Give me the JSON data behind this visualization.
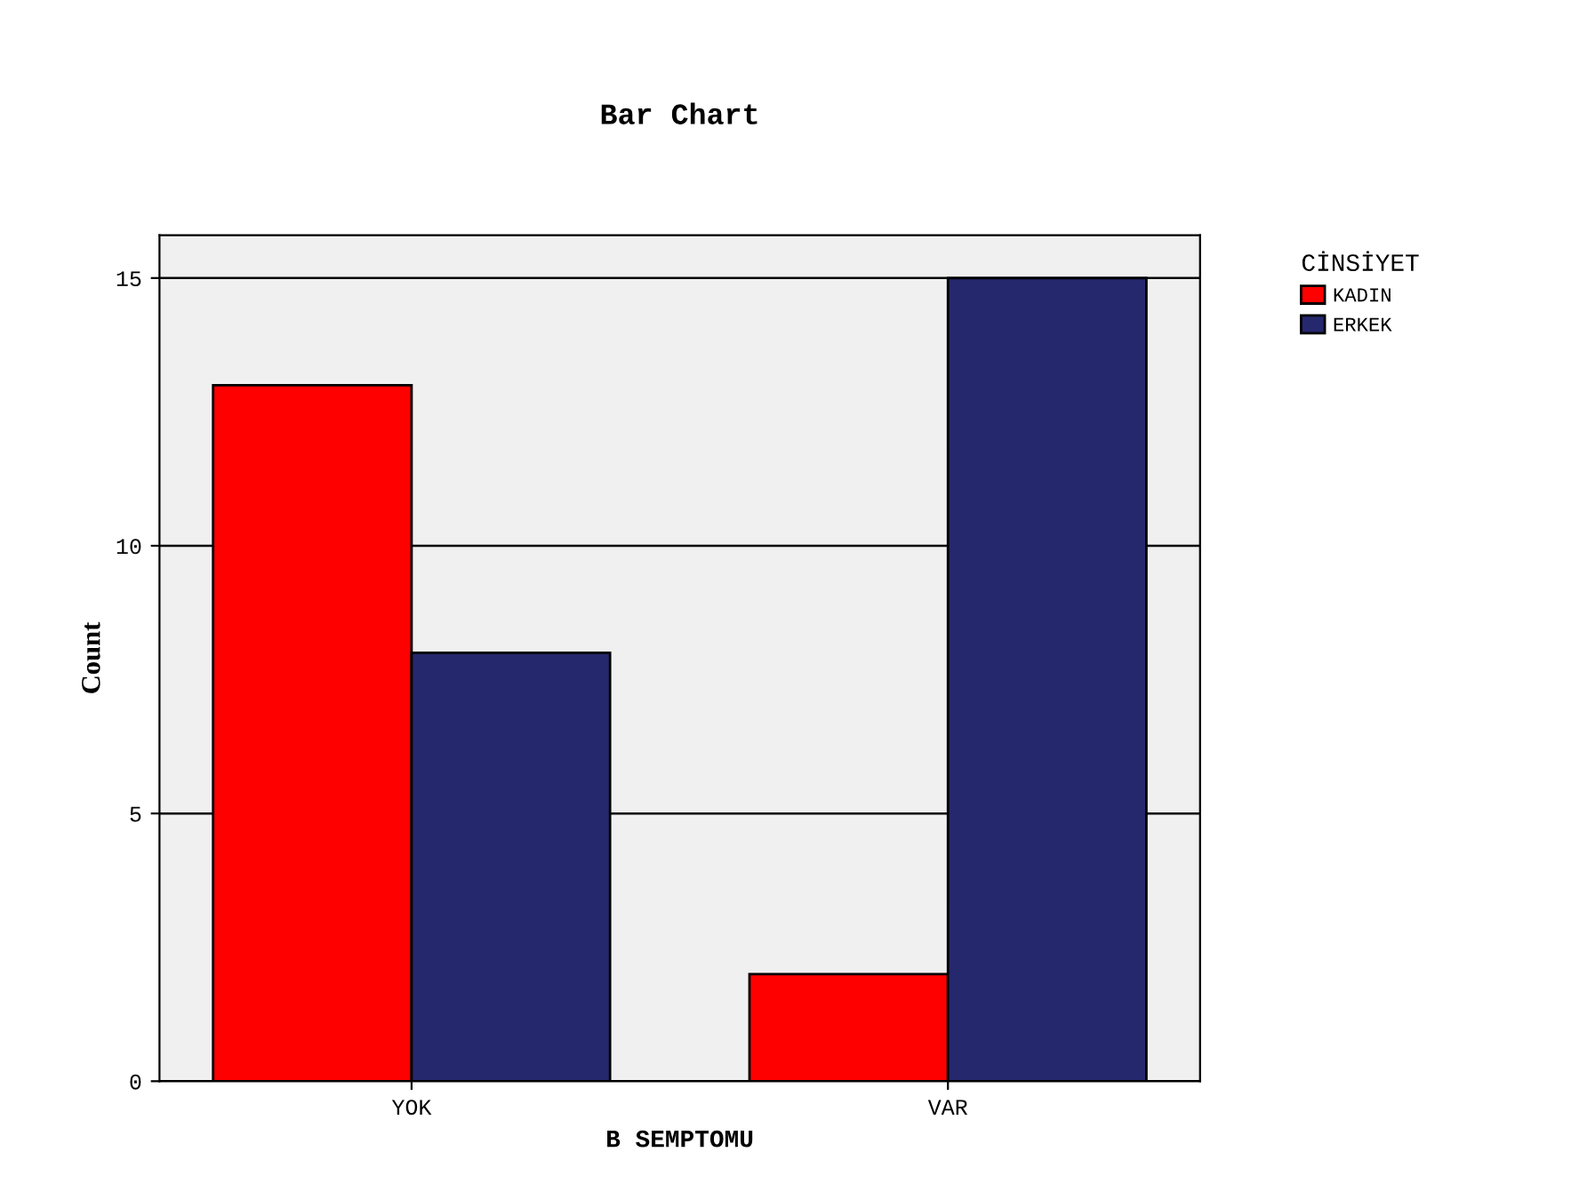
{
  "chart_data": {
    "type": "bar",
    "title": "Bar Chart",
    "xlabel": "B SEMPTOMU",
    "ylabel": "Count",
    "legend_title": "CİNSİYET",
    "categories": [
      "YOK",
      "VAR"
    ],
    "series": [
      {
        "name": "KADIN",
        "color": "#ff0000",
        "values": [
          13,
          2
        ]
      },
      {
        "name": "ERKEK",
        "color": "#26286e",
        "values": [
          8,
          15
        ]
      }
    ],
    "ylim": [
      0,
      15.8
    ],
    "yticks": [
      0,
      5,
      10,
      15
    ],
    "grid": "y",
    "legend": "top right"
  }
}
